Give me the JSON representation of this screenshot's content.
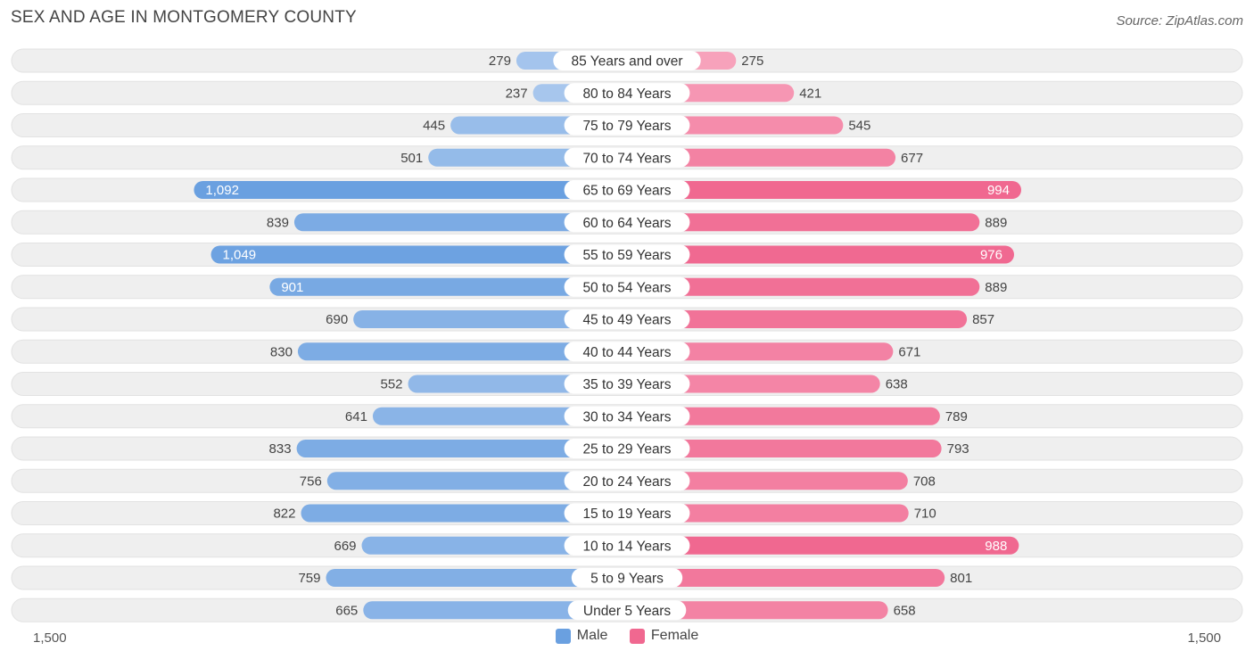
{
  "header": {
    "title": "SEX AND AGE IN MONTGOMERY COUNTY",
    "source": "Source: ZipAtlas.com"
  },
  "colors": {
    "male": "#6aa0e0",
    "male_light": "#aac8ee",
    "female": "#f06890",
    "female_light": "#f8a8c0",
    "row_bg": "#efefef"
  },
  "chart_data": {
    "type": "bar",
    "orientation": "horizontal-butterfly",
    "title": "SEX AND AGE IN MONTGOMERY COUNTY",
    "categories": [
      "85 Years and over",
      "80 to 84 Years",
      "75 to 79 Years",
      "70 to 74 Years",
      "65 to 69 Years",
      "60 to 64 Years",
      "55 to 59 Years",
      "50 to 54 Years",
      "45 to 49 Years",
      "40 to 44 Years",
      "35 to 39 Years",
      "30 to 34 Years",
      "25 to 29 Years",
      "20 to 24 Years",
      "15 to 19 Years",
      "10 to 14 Years",
      "5 to 9 Years",
      "Under 5 Years"
    ],
    "series": [
      {
        "name": "Male",
        "values": [
          279,
          237,
          445,
          501,
          1092,
          839,
          1049,
          901,
          690,
          830,
          552,
          641,
          833,
          756,
          822,
          669,
          759,
          665
        ],
        "labels": [
          "279",
          "237",
          "445",
          "501",
          "1,092",
          "839",
          "1,049",
          "901",
          "690",
          "830",
          "552",
          "641",
          "833",
          "756",
          "822",
          "669",
          "759",
          "665"
        ]
      },
      {
        "name": "Female",
        "values": [
          275,
          421,
          545,
          677,
          994,
          889,
          976,
          889,
          857,
          671,
          638,
          789,
          793,
          708,
          710,
          988,
          801,
          658
        ],
        "labels": [
          "275",
          "421",
          "545",
          "677",
          "994",
          "889",
          "976",
          "889",
          "857",
          "671",
          "638",
          "789",
          "793",
          "708",
          "710",
          "988",
          "801",
          "658"
        ]
      }
    ],
    "axis_max": 1500,
    "axis_left_label": "1,500",
    "axis_right_label": "1,500",
    "legend": [
      "Male",
      "Female"
    ],
    "legend_position": "bottom-center"
  }
}
